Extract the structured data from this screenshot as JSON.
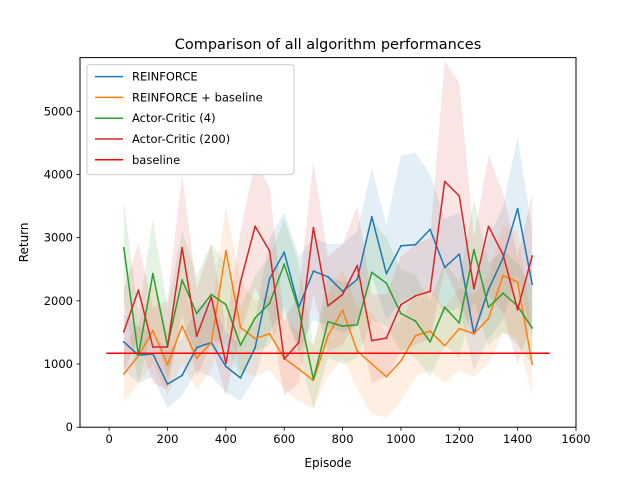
{
  "chart_data": {
    "type": "line",
    "title": "Comparison of all algorithm performances",
    "xlabel": "Episode",
    "ylabel": "Return",
    "xlim": [
      -100,
      1600
    ],
    "ylim": [
      0,
      5850
    ],
    "xticks": [
      0,
      200,
      400,
      600,
      800,
      1000,
      1200,
      1400,
      1600
    ],
    "yticks": [
      0,
      1000,
      2000,
      3000,
      4000,
      5000
    ],
    "legend_position": "top-left",
    "grid": false,
    "x": [
      50,
      100,
      150,
      200,
      250,
      300,
      350,
      400,
      450,
      500,
      550,
      600,
      650,
      700,
      750,
      800,
      850,
      900,
      950,
      1000,
      1050,
      1100,
      1150,
      1200,
      1250,
      1300,
      1350,
      1400,
      1450
    ],
    "series": [
      {
        "name": "REINFORCE",
        "color": "#1f77b4",
        "values": [
          1350,
          1140,
          1160,
          680,
          820,
          1260,
          1340,
          960,
          780,
          1260,
          2350,
          2770,
          1900,
          2470,
          2380,
          2150,
          2340,
          3330,
          2430,
          2870,
          2890,
          3130,
          2530,
          2740,
          1480,
          2180,
          2680,
          3460,
          2260
        ],
        "band_lower": [
          900,
          700,
          800,
          300,
          500,
          900,
          800,
          550,
          420,
          800,
          1500,
          1900,
          1200,
          1700,
          1600,
          1500,
          1600,
          2400,
          1700,
          2000,
          2100,
          2200,
          1800,
          1900,
          900,
          1400,
          1700,
          2400,
          1400
        ],
        "band_upper": [
          1800,
          1600,
          1500,
          1200,
          1400,
          1900,
          2000,
          1500,
          1300,
          1700,
          3000,
          3400,
          2700,
          3000,
          2900,
          2900,
          3100,
          4100,
          3200,
          4300,
          4350,
          4000,
          3300,
          3400,
          2300,
          3000,
          3500,
          4600,
          3100
        ]
      },
      {
        "name": "REINFORCE + baseline",
        "color": "#ff7f0e",
        "values": [
          840,
          1130,
          1530,
          990,
          1600,
          1090,
          1340,
          2790,
          1580,
          1400,
          1480,
          1090,
          920,
          740,
          1450,
          1850,
          1210,
          1000,
          800,
          1050,
          1450,
          1520,
          1290,
          1560,
          1480,
          1720,
          2400,
          2300,
          1000
        ],
        "band_lower": [
          400,
          700,
          1000,
          500,
          1000,
          600,
          900,
          1700,
          900,
          800,
          900,
          600,
          400,
          300,
          800,
          1100,
          600,
          200,
          150,
          400,
          800,
          900,
          700,
          900,
          800,
          1000,
          1500,
          1400,
          500
        ],
        "band_upper": [
          1300,
          1600,
          2300,
          1500,
          2300,
          1600,
          1900,
          3500,
          2300,
          2000,
          2100,
          1700,
          1500,
          1300,
          2100,
          2500,
          1900,
          1800,
          1500,
          1700,
          2100,
          2200,
          1900,
          2200,
          2100,
          2400,
          3200,
          3100,
          1600
        ]
      },
      {
        "name": "Actor-Critic (4)",
        "color": "#2ca02c",
        "values": [
          2840,
          1140,
          2430,
          1290,
          2330,
          1800,
          2100,
          1940,
          1300,
          1730,
          1960,
          2580,
          1860,
          760,
          1670,
          1600,
          1620,
          2450,
          2280,
          1800,
          1680,
          1350,
          1900,
          1650,
          2810,
          1900,
          2120,
          1920,
          1570
        ],
        "band_lower": [
          2000,
          700,
          1600,
          800,
          1600,
          1200,
          1400,
          1300,
          800,
          1200,
          1300,
          1800,
          1200,
          300,
          1100,
          1000,
          1100,
          1700,
          1600,
          1200,
          1100,
          800,
          1300,
          1100,
          2000,
          1300,
          1500,
          1300,
          1000
        ],
        "band_upper": [
          3600,
          1800,
          3300,
          1900,
          3100,
          2400,
          2900,
          2600,
          1900,
          2400,
          2700,
          3300,
          2600,
          1300,
          2400,
          2300,
          2300,
          3300,
          3000,
          2500,
          2400,
          2000,
          2600,
          2300,
          3600,
          2600,
          2800,
          2600,
          2200
        ]
      },
      {
        "name": "Actor-Critic (200)",
        "color": "#d62728",
        "values": [
          1510,
          2170,
          1270,
          1270,
          2840,
          1440,
          2060,
          1010,
          2300,
          3180,
          2790,
          1080,
          1340,
          3160,
          1920,
          2100,
          2560,
          1370,
          1410,
          1940,
          2080,
          2150,
          3890,
          3660,
          2190,
          3180,
          2730,
          1860,
          2710
        ],
        "band_lower": [
          900,
          1400,
          700,
          600,
          1800,
          800,
          1300,
          500,
          1500,
          2200,
          1800,
          500,
          700,
          2100,
          1200,
          1300,
          1700,
          700,
          800,
          1200,
          1300,
          1400,
          2500,
          2000,
          1400,
          2100,
          1800,
          1000,
          1700
        ],
        "band_upper": [
          2200,
          2900,
          1900,
          2000,
          4000,
          2200,
          2900,
          1600,
          3100,
          4200,
          3800,
          1700,
          2100,
          4200,
          2700,
          2900,
          3500,
          2100,
          2100,
          2700,
          2900,
          3000,
          5800,
          5450,
          3000,
          4300,
          3700,
          2700,
          3700
        ]
      }
    ],
    "reference_line": {
      "name": "baseline",
      "color": "#ff0000",
      "x": [
        -10,
        1510
      ],
      "y": 1170
    }
  }
}
